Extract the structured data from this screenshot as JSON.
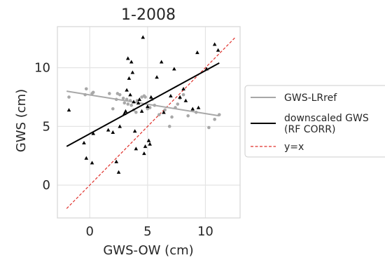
{
  "chart_data": {
    "type": "scatter",
    "title": "1-2008",
    "xlabel": "GWS-OW (cm)",
    "ylabel": "GWS (cm)",
    "xlim": [
      -2.8,
      13.0
    ],
    "ylim": [
      -2.8,
      13.5
    ],
    "xticks": [
      0,
      5,
      10
    ],
    "yticks": [
      0,
      5,
      10
    ],
    "grid": true,
    "legend_position": "outside-right",
    "series": [
      {
        "name": "GWS-LRref",
        "kind": "scatter+fit",
        "marker": "circle",
        "color": "#a8a8a8",
        "points": [
          [
            -1.8,
            7.5
          ],
          [
            -0.4,
            7.7
          ],
          [
            -0.3,
            8.2
          ],
          [
            0.2,
            7.8
          ],
          [
            0.3,
            7.9
          ],
          [
            1.7,
            7.8
          ],
          [
            2.0,
            6.5
          ],
          [
            2.3,
            7.3
          ],
          [
            2.4,
            7.8
          ],
          [
            2.6,
            7.7
          ],
          [
            2.9,
            7.4
          ],
          [
            3.0,
            7.0
          ],
          [
            3.2,
            7.3
          ],
          [
            3.3,
            6.9
          ],
          [
            3.5,
            7.2
          ],
          [
            3.6,
            6.8
          ],
          [
            3.8,
            6.4
          ],
          [
            4.0,
            6.2
          ],
          [
            4.1,
            7.2
          ],
          [
            4.5,
            7.5
          ],
          [
            4.7,
            7.6
          ],
          [
            4.8,
            7.5
          ],
          [
            5.0,
            6.5
          ],
          [
            5.2,
            6.6
          ],
          [
            5.4,
            7.3
          ],
          [
            5.6,
            6.8
          ],
          [
            6.0,
            6.0
          ],
          [
            6.5,
            6.4
          ],
          [
            6.9,
            5.0
          ],
          [
            7.1,
            5.8
          ],
          [
            7.4,
            6.6
          ],
          [
            7.6,
            6.9
          ],
          [
            7.8,
            7.4
          ],
          [
            8.1,
            7.7
          ],
          [
            8.5,
            5.9
          ],
          [
            8.9,
            6.4
          ],
          [
            9.2,
            6.2
          ],
          [
            10.3,
            4.9
          ],
          [
            10.8,
            5.6
          ],
          [
            11.2,
            6.0
          ]
        ],
        "fit_line": {
          "x": [
            -2.0,
            11.2
          ],
          "y": [
            8.0,
            5.9
          ]
        }
      },
      {
        "name": "downscaled GWS\n(RF CORR)",
        "kind": "scatter+fit",
        "marker": "triangle",
        "color": "#000000",
        "points": [
          [
            -1.8,
            6.4
          ],
          [
            -0.5,
            3.6
          ],
          [
            -0.3,
            2.3
          ],
          [
            0.2,
            1.9
          ],
          [
            0.3,
            4.4
          ],
          [
            1.6,
            4.7
          ],
          [
            2.0,
            4.5
          ],
          [
            2.3,
            2.0
          ],
          [
            2.5,
            1.1
          ],
          [
            2.6,
            5.0
          ],
          [
            3.0,
            6.1
          ],
          [
            3.1,
            6.3
          ],
          [
            3.2,
            8.1
          ],
          [
            3.3,
            10.8
          ],
          [
            3.4,
            9.1
          ],
          [
            3.5,
            7.7
          ],
          [
            3.6,
            10.5
          ],
          [
            3.7,
            9.6
          ],
          [
            3.8,
            7.1
          ],
          [
            3.9,
            4.6
          ],
          [
            4.0,
            3.1
          ],
          [
            4.2,
            7.0
          ],
          [
            4.3,
            7.3
          ],
          [
            4.5,
            6.3
          ],
          [
            4.6,
            12.6
          ],
          [
            4.7,
            2.7
          ],
          [
            4.8,
            3.3
          ],
          [
            5.0,
            6.7
          ],
          [
            5.1,
            3.8
          ],
          [
            5.2,
            3.5
          ],
          [
            5.3,
            7.5
          ],
          [
            5.8,
            9.2
          ],
          [
            6.2,
            10.5
          ],
          [
            6.4,
            6.2
          ],
          [
            7.0,
            7.6
          ],
          [
            7.3,
            9.9
          ],
          [
            7.8,
            7.5
          ],
          [
            8.1,
            8.2
          ],
          [
            8.3,
            7.2
          ],
          [
            8.9,
            6.5
          ],
          [
            9.3,
            11.3
          ],
          [
            9.4,
            6.6
          ],
          [
            10.1,
            9.9
          ],
          [
            10.8,
            12.0
          ],
          [
            11.1,
            11.5
          ]
        ],
        "fit_line": {
          "x": [
            -2.0,
            11.2
          ],
          "y": [
            3.3,
            10.4
          ]
        }
      },
      {
        "name": "y=x",
        "kind": "line",
        "style": "dashed",
        "color": "#e0302b",
        "line": {
          "x": [
            -2.0,
            12.6
          ],
          "y": [
            -2.0,
            12.6
          ]
        }
      }
    ]
  },
  "colors": {
    "grid": "#e4e4e4",
    "axes_edge": "#d6d6d6",
    "text": "#262626",
    "legend_edge": "#cccccc"
  }
}
